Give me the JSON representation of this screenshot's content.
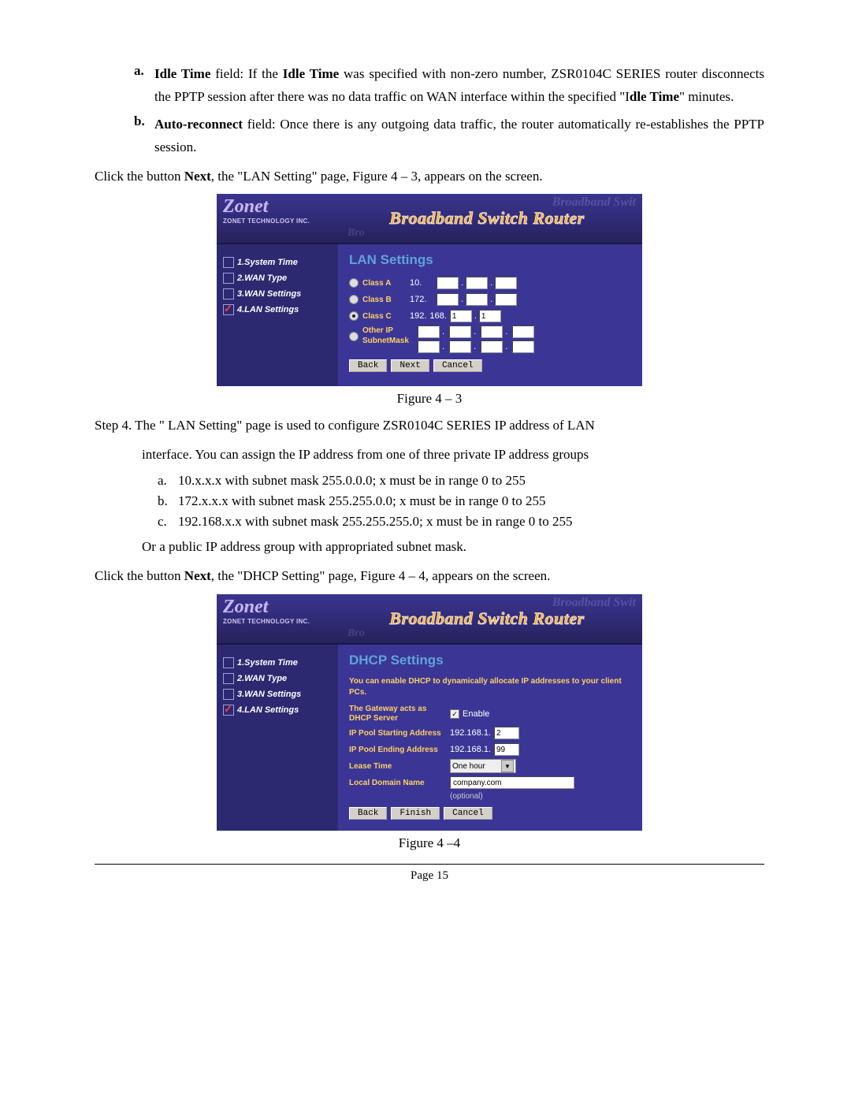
{
  "doc": {
    "item_a_letter": "a.",
    "item_a_html": "<b>Idle Time</b> field:  If the <b>Idle Time</b> was specified with non-zero number, ZSR0104C SERIES router disconnects the PPTP session after there was no data traffic on WAN interface within the specified \"I<b>dle Time</b>\" minutes.",
    "item_b_letter": "b.",
    "item_b_html": "<b>Auto-reconnect</b> field: Once there is any outgoing data traffic, the router automatically re-establishes the PPTP session.",
    "click_next_1_html": "Click the button <b>Next</b>, the \"LAN Setting\" page, Figure 4 – 3, appears on the screen.",
    "figure43": "Figure 4 – 3",
    "step4_line1": "Step 4. The \" LAN Setting\" page is used to configure ZSR0104C SERIES IP address of LAN",
    "step4_line2": "interface. You can assign the IP address from one of three private IP address groups",
    "sub_a": "a.",
    "sub_a_text": "10.x.x.x with subnet mask 255.0.0.0; x must be in range 0 to 255",
    "sub_b": "b.",
    "sub_b_text": "172.x.x.x with subnet mask 255.255.0.0; x must be in range 0 to 255",
    "sub_c": "c.",
    "sub_c_text": "192.168.x.x with subnet mask 255.255.255.0; x must be in range 0 to 255",
    "or_line": "Or a public IP address group with appropriated subnet mask.",
    "click_next_2_html": "Click the button <b>Next</b>, the \"DHCP Setting\" page, Figure 4 – 4, appears on the screen.",
    "figure44": "Figure 4 –4",
    "page_num": "Page 15"
  },
  "router": {
    "logo": "Zonet",
    "logo_sub": "ZONET TECHNOLOGY INC.",
    "header_title": "Broadband Switch Router",
    "watermark1": "Broadband Swit",
    "watermark2": "Bro",
    "sidebar": {
      "i1": "1.System Time",
      "i2": "2.WAN Type",
      "i3": "3.WAN Settings",
      "i4": "4.LAN Settings"
    },
    "buttons": {
      "back": "Back",
      "next": "Next",
      "cancel": "Cancel",
      "finish": "Finish"
    }
  },
  "lan": {
    "title": "LAN Settings",
    "classA": "Class A",
    "classA_ip": "10.",
    "classB": "Class B",
    "classB_ip": "172.",
    "classC": "Class C",
    "classC_ip1": "192.",
    "classC_ip2": "168.",
    "classC_v3": "1",
    "classC_v4": "1",
    "other1": "Other IP",
    "other2": "SubnetMask"
  },
  "dhcp": {
    "title": "DHCP Settings",
    "intro": "You can enable DHCP to dynamically allocate IP addresses to your client PCs.",
    "l1": "The Gateway acts as DHCP Server",
    "enable": "Enable",
    "l2": "IP Pool Starting Address",
    "l2_prefix": "192.168.1.",
    "l2_val": "2",
    "l3": "IP Pool Ending Address",
    "l3_prefix": "192.168.1.",
    "l3_val": "99",
    "l4": "Lease Time",
    "l4_val": "One hour",
    "l5": "Local Domain Name",
    "l5_val": "company.com",
    "l5_opt": "(optional)"
  }
}
